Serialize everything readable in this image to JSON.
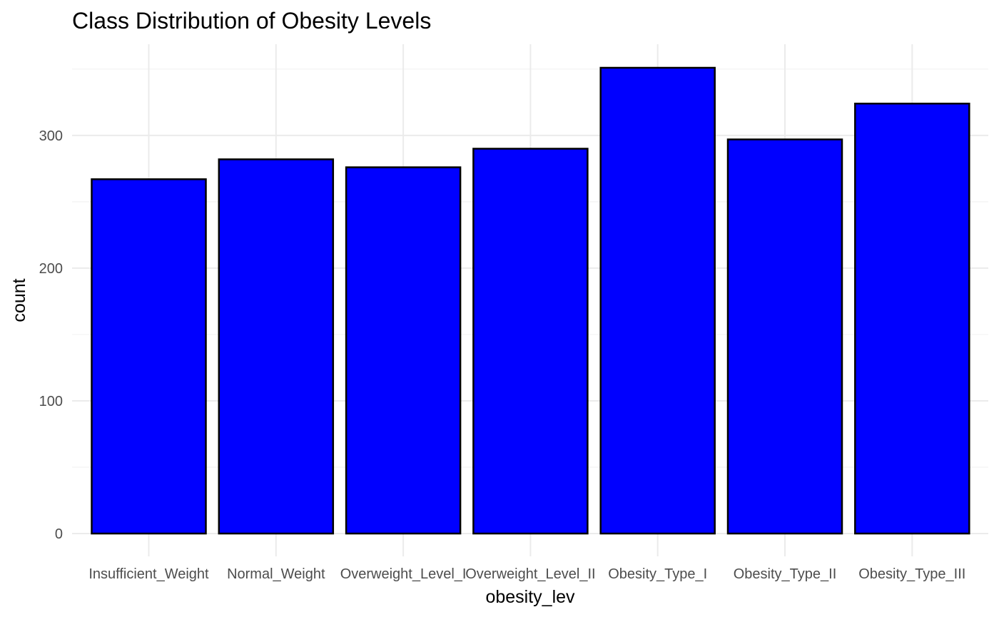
{
  "chart_data": {
    "type": "bar",
    "title": "Class Distribution of Obesity Levels",
    "xlabel": "obesity_lev",
    "ylabel": "count",
    "categories": [
      "Insufficient_Weight",
      "Normal_Weight",
      "Overweight_Level_I",
      "Overweight_Level_II",
      "Obesity_Type_I",
      "Obesity_Type_II",
      "Obesity_Type_III"
    ],
    "values": [
      267,
      282,
      276,
      290,
      351,
      297,
      324
    ],
    "ylim": [
      0,
      351
    ],
    "yticks": [
      0,
      100,
      200,
      300
    ],
    "ytick_labels": [
      "0",
      "100",
      "200",
      "300"
    ],
    "grid": true,
    "legend": "none",
    "colors": {
      "bar_fill": "#0000ff",
      "bar_stroke": "#000000",
      "grid_major": "#ebebeb",
      "grid_minor": "#f3f3f3",
      "tick_text": "#4d4d4d"
    }
  }
}
